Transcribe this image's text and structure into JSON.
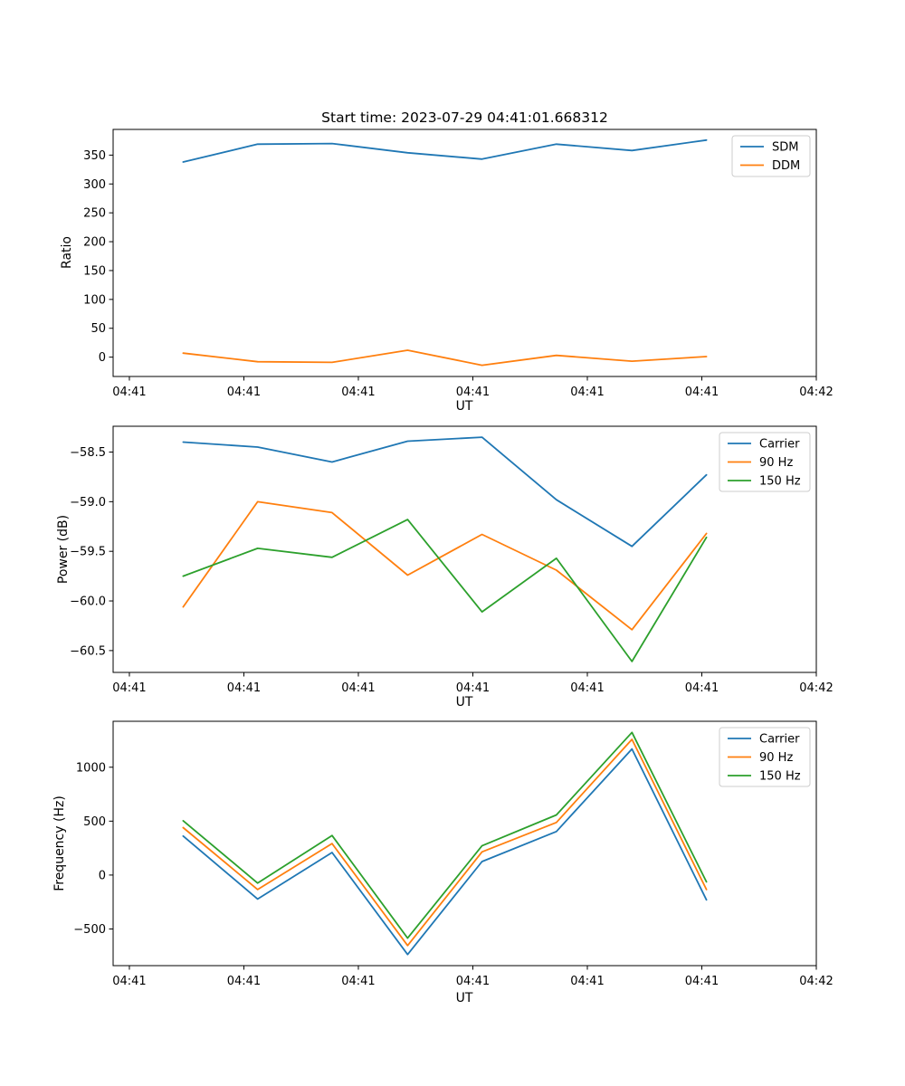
{
  "figure": {
    "background": "#ffffff"
  },
  "chart_data": [
    {
      "id": "ratio",
      "type": "line",
      "title": "Start time: 2023-07-29 04:41:01.668312",
      "xlabel": "UT",
      "ylabel": "Ratio",
      "grid": false,
      "legend_position": "upper right",
      "x_seconds": [
        4.7,
        11.2,
        17.7,
        24.3,
        30.8,
        37.3,
        43.9,
        50.4
      ],
      "xlim_seconds": [
        -1.42,
        60.0
      ],
      "ylim": [
        -33.5,
        394.5
      ],
      "xticks_seconds": [
        0,
        10,
        20,
        30,
        40,
        50,
        60
      ],
      "xtick_labels": [
        "04:41",
        "04:41",
        "04:41",
        "04:41",
        "04:41",
        "04:41",
        "04:42"
      ],
      "yticks": [
        0,
        50,
        100,
        150,
        200,
        250,
        300,
        350
      ],
      "ytick_labels": [
        "0",
        "50",
        "100",
        "150",
        "200",
        "250",
        "300",
        "350"
      ],
      "series": [
        {
          "name": "SDM",
          "color": "#1f77b4",
          "values": [
            338,
            369,
            370,
            354,
            343,
            369,
            358,
            376
          ]
        },
        {
          "name": "DDM",
          "color": "#ff7f0e",
          "values": [
            7,
            -8,
            -9,
            12,
            -14,
            3,
            -7,
            1
          ]
        }
      ]
    },
    {
      "id": "power",
      "type": "line",
      "title": "",
      "xlabel": "UT",
      "ylabel": "Power (dB)",
      "grid": false,
      "legend_position": "upper right",
      "x_seconds": [
        4.7,
        11.2,
        17.7,
        24.3,
        30.8,
        37.3,
        43.9,
        50.4
      ],
      "xlim_seconds": [
        -1.42,
        60.0
      ],
      "ylim": [
        -60.72,
        -58.24
      ],
      "xticks_seconds": [
        0,
        10,
        20,
        30,
        40,
        50,
        60
      ],
      "xtick_labels": [
        "04:41",
        "04:41",
        "04:41",
        "04:41",
        "04:41",
        "04:41",
        "04:42"
      ],
      "yticks": [
        -60.5,
        -60.0,
        -59.5,
        -59.0,
        -58.5
      ],
      "ytick_labels": [
        "−60.5",
        "−60.0",
        "−59.5",
        "−59.0",
        "−58.5"
      ],
      "series": [
        {
          "name": "Carrier",
          "color": "#1f77b4",
          "values": [
            -58.4,
            -58.45,
            -58.6,
            -58.39,
            -58.35,
            -58.98,
            -59.45,
            -58.73
          ]
        },
        {
          "name": "90 Hz",
          "color": "#ff7f0e",
          "values": [
            -60.06,
            -59.0,
            -59.11,
            -59.74,
            -59.33,
            -59.69,
            -60.29,
            -59.32
          ]
        },
        {
          "name": "150 Hz",
          "color": "#2ca02c",
          "values": [
            -59.75,
            -59.47,
            -59.56,
            -59.18,
            -60.11,
            -59.57,
            -60.61,
            -59.36
          ]
        }
      ]
    },
    {
      "id": "frequency",
      "type": "line",
      "title": "",
      "xlabel": "UT",
      "ylabel": "Frequency (Hz)",
      "grid": false,
      "legend_position": "upper right",
      "x_seconds": [
        4.7,
        11.2,
        17.7,
        24.3,
        30.8,
        37.3,
        43.9,
        50.4
      ],
      "xlim_seconds": [
        -1.42,
        60.0
      ],
      "ylim": [
        -840,
        1426
      ],
      "xticks_seconds": [
        0,
        10,
        20,
        30,
        40,
        50,
        60
      ],
      "xtick_labels": [
        "04:41",
        "04:41",
        "04:41",
        "04:41",
        "04:41",
        "04:41",
        "04:42"
      ],
      "yticks": [
        -500,
        0,
        500,
        1000
      ],
      "ytick_labels": [
        "−500",
        "0",
        "500",
        "1000"
      ],
      "series": [
        {
          "name": "Carrier",
          "color": "#1f77b4",
          "values": [
            362,
            -222,
            209,
            -737,
            125,
            404,
            1169,
            -230
          ]
        },
        {
          "name": "90 Hz",
          "color": "#ff7f0e",
          "values": [
            440,
            -134,
            292,
            -654,
            215,
            488,
            1258,
            -134
          ]
        },
        {
          "name": "150 Hz",
          "color": "#2ca02c",
          "values": [
            504,
            -75,
            367,
            -585,
            271,
            557,
            1323,
            -63
          ]
        }
      ]
    }
  ]
}
